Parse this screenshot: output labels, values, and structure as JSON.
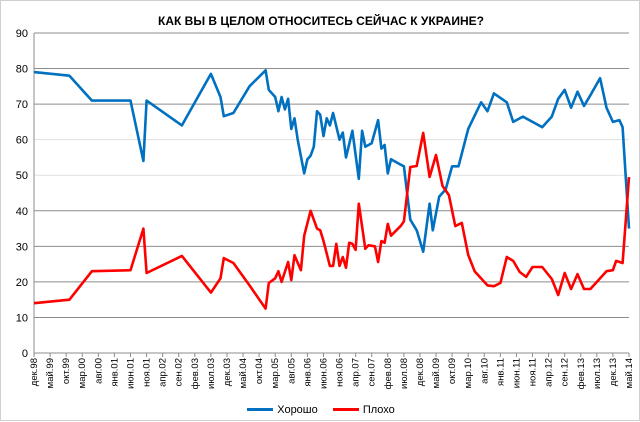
{
  "chart_data": {
    "type": "line",
    "title": "КАК ВЫ В ЦЕЛОМ ОТНОСИТЕСЬ СЕЙЧАС К УКРАИНЕ?",
    "xlabel": "",
    "ylabel": "",
    "ylim": [
      0,
      90
    ],
    "yticks": [
      0,
      10,
      20,
      30,
      40,
      50,
      60,
      70,
      80,
      90
    ],
    "x_unit": "months since дек.98",
    "xlim": [
      0,
      185
    ],
    "categories": [
      "дек.98",
      "май.99",
      "окт.99",
      "мар.00",
      "авг.00",
      "янв.01",
      "июн.01",
      "ноя.01",
      "апр.02",
      "сен.02",
      "фев.03",
      "июл.03",
      "дек.03",
      "май.04",
      "окт.04",
      "мар.05",
      "авг.05",
      "янв.06",
      "июн.06",
      "ноя.06",
      "апр.07",
      "сен.07",
      "фев.08",
      "июл.08",
      "дек.08",
      "май.09",
      "окт.09",
      "мар.10",
      "авг.10",
      "янв.11",
      "июн.11",
      "ноя.11",
      "апр.12",
      "сен.12",
      "фев.13",
      "июл.13",
      "дек.13",
      "май.14"
    ],
    "category_step_months": 5,
    "grid": true,
    "legend_position": "bottom",
    "series": [
      {
        "name": "Хорошо",
        "color": "#0070c0",
        "points": [
          [
            0,
            79
          ],
          [
            11,
            78
          ],
          [
            18,
            71
          ],
          [
            30,
            71
          ],
          [
            34,
            54
          ],
          [
            35,
            71
          ],
          [
            46,
            64
          ],
          [
            55,
            78.5
          ],
          [
            58,
            72
          ],
          [
            59,
            66.6
          ],
          [
            62,
            67.5
          ],
          [
            67,
            75
          ],
          [
            72,
            79.5
          ],
          [
            73,
            74
          ],
          [
            75,
            72
          ],
          [
            76,
            68
          ],
          [
            77,
            72
          ],
          [
            78,
            68.5
          ],
          [
            79,
            71.5
          ],
          [
            80,
            63
          ],
          [
            81,
            66
          ],
          [
            82,
            60
          ],
          [
            84,
            50.5
          ],
          [
            85,
            54.5
          ],
          [
            86,
            55.5
          ],
          [
            87,
            58
          ],
          [
            88,
            68
          ],
          [
            89,
            67
          ],
          [
            90,
            61
          ],
          [
            91,
            66
          ],
          [
            92,
            64
          ],
          [
            93,
            67.5
          ],
          [
            95,
            60
          ],
          [
            96,
            62
          ],
          [
            97,
            55
          ],
          [
            99,
            62.5
          ],
          [
            101,
            49
          ],
          [
            102,
            62.5
          ],
          [
            103,
            58
          ],
          [
            105,
            59
          ],
          [
            107,
            65.5
          ],
          [
            108,
            57.5
          ],
          [
            109,
            58.5
          ],
          [
            110,
            50.5
          ],
          [
            111,
            54.5
          ],
          [
            114,
            53
          ],
          [
            115,
            52.5
          ],
          [
            117,
            37.5
          ],
          [
            119,
            34.5
          ],
          [
            121,
            28.5
          ],
          [
            123,
            42
          ],
          [
            124,
            34.5
          ],
          [
            126,
            44
          ],
          [
            128,
            46
          ],
          [
            130,
            52.5
          ],
          [
            132,
            52.5
          ],
          [
            135,
            63
          ],
          [
            139,
            70.5
          ],
          [
            141,
            68
          ],
          [
            143,
            73
          ],
          [
            147,
            70.5
          ],
          [
            149,
            65
          ],
          [
            152,
            66.5
          ],
          [
            158,
            63.5
          ],
          [
            161,
            66.5
          ],
          [
            163,
            71.5
          ],
          [
            165,
            74
          ],
          [
            167,
            69
          ],
          [
            169,
            73.5
          ],
          [
            171,
            69.5
          ],
          [
            173,
            72.5
          ],
          [
            176,
            77.3
          ],
          [
            178,
            69
          ],
          [
            180,
            65
          ],
          [
            182,
            65.5
          ],
          [
            183,
            63.5
          ],
          [
            185,
            35
          ]
        ]
      },
      {
        "name": "Плохо",
        "color": "#ff0000",
        "points": [
          [
            0,
            14
          ],
          [
            11,
            15
          ],
          [
            18,
            23
          ],
          [
            30,
            23.3
          ],
          [
            34,
            35
          ],
          [
            35,
            22.5
          ],
          [
            46,
            27.3
          ],
          [
            55,
            17
          ],
          [
            58,
            21
          ],
          [
            59,
            26.7
          ],
          [
            62,
            25.3
          ],
          [
            67,
            19
          ],
          [
            72,
            12.5
          ],
          [
            73,
            19.7
          ],
          [
            75,
            21
          ],
          [
            76,
            23
          ],
          [
            77,
            20
          ],
          [
            79,
            25.6
          ],
          [
            80,
            20.5
          ],
          [
            81,
            27.5
          ],
          [
            83,
            23.3
          ],
          [
            84,
            33
          ],
          [
            86,
            40
          ],
          [
            88,
            35
          ],
          [
            89,
            34.5
          ],
          [
            90,
            31.5
          ],
          [
            92,
            24.5
          ],
          [
            93,
            24.5
          ],
          [
            94,
            30.7
          ],
          [
            95,
            24.5
          ],
          [
            96,
            27
          ],
          [
            97,
            24
          ],
          [
            98,
            31
          ],
          [
            99,
            30.7
          ],
          [
            100,
            29
          ],
          [
            101,
            42
          ],
          [
            103,
            29.3
          ],
          [
            104,
            30.3
          ],
          [
            106,
            30
          ],
          [
            107,
            25.6
          ],
          [
            108,
            31.5
          ],
          [
            109,
            31
          ],
          [
            110,
            36.3
          ],
          [
            111,
            33
          ],
          [
            114,
            35.7
          ],
          [
            115,
            37
          ],
          [
            117,
            52.3
          ],
          [
            119,
            52.6
          ],
          [
            121,
            61.9
          ],
          [
            123,
            49.5
          ],
          [
            125,
            55.7
          ],
          [
            127,
            47
          ],
          [
            129,
            44.4
          ],
          [
            131,
            35.7
          ],
          [
            133,
            36.6
          ],
          [
            135,
            27.6
          ],
          [
            137,
            23
          ],
          [
            141,
            19
          ],
          [
            143,
            18.8
          ],
          [
            145,
            19.7
          ],
          [
            147,
            27
          ],
          [
            149,
            25.9
          ],
          [
            151,
            22.8
          ],
          [
            153,
            21.4
          ],
          [
            155,
            24.2
          ],
          [
            158,
            24.2
          ],
          [
            161,
            20.8
          ],
          [
            163,
            16.3
          ],
          [
            165,
            22.5
          ],
          [
            167,
            18
          ],
          [
            169,
            22.2
          ],
          [
            171,
            18
          ],
          [
            173,
            18
          ],
          [
            178,
            23
          ],
          [
            180,
            23.3
          ],
          [
            181,
            25.9
          ],
          [
            183,
            25.3
          ],
          [
            185,
            49.5
          ]
        ]
      }
    ]
  }
}
